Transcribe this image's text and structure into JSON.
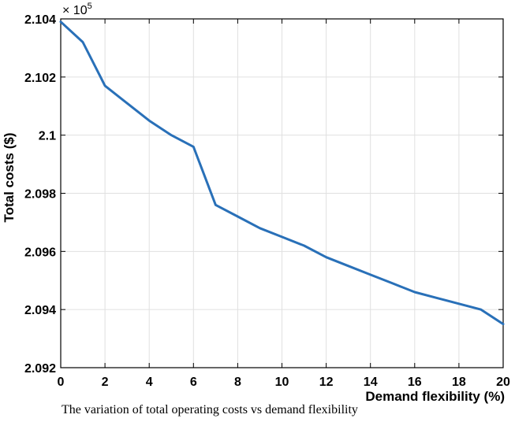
{
  "chart_data": {
    "type": "line",
    "title": "",
    "xlabel": "Demand flexibility (%)",
    "ylabel": "Total costs ($)",
    "y_multiplier": "× 10",
    "y_multiplier_exponent": "5",
    "xlim": [
      0,
      20
    ],
    "ylim": [
      2.092,
      2.104
    ],
    "grid": true,
    "x_ticks": [
      "0",
      "2",
      "4",
      "6",
      "8",
      "10",
      "12",
      "14",
      "16",
      "18",
      "20"
    ],
    "y_ticks": [
      "2.092",
      "2.094",
      "2.096",
      "2.098",
      "2.1",
      "2.102",
      "2.104"
    ],
    "line_color": "#2970b8",
    "series": [
      {
        "x": [
          0,
          1,
          2,
          3,
          4,
          5,
          6,
          7,
          8,
          9,
          10,
          11,
          12,
          13,
          14,
          15,
          16,
          17,
          18,
          19,
          20
        ],
        "values": [
          2.1039,
          2.1032,
          2.1017,
          2.1011,
          2.1005,
          2.1,
          2.0996,
          2.0976,
          2.0972,
          2.0968,
          2.0965,
          2.0962,
          2.0958,
          2.0955,
          2.0952,
          2.0949,
          2.0946,
          2.0944,
          2.0942,
          2.094,
          2.0935
        ]
      }
    ]
  },
  "caption": "The variation of total operating costs vs demand flexibility"
}
